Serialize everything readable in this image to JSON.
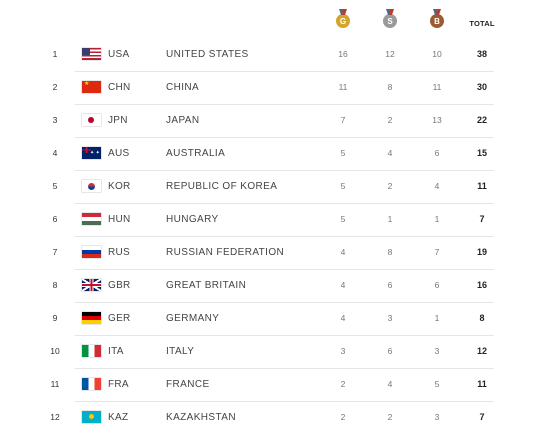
{
  "header": {
    "gold_icon": "gold-medal-icon",
    "gold_letter": "G",
    "silver_icon": "silver-medal-icon",
    "silver_letter": "S",
    "bronze_icon": "bronze-medal-icon",
    "bronze_letter": "B",
    "total_label": "TOTAL"
  },
  "colors": {
    "gold": "#d4a52a",
    "silver": "#9a9a9a",
    "bronze": "#9c5b32"
  },
  "rows": [
    {
      "rank": "1",
      "flag": "usa-flag-icon",
      "code": "USA",
      "country": "UNITED STATES",
      "gold": "16",
      "silver": "12",
      "bronze": "10",
      "total": "38"
    },
    {
      "rank": "2",
      "flag": "chn-flag-icon",
      "code": "CHN",
      "country": "CHINA",
      "gold": "11",
      "silver": "8",
      "bronze": "11",
      "total": "30"
    },
    {
      "rank": "3",
      "flag": "jpn-flag-icon",
      "code": "JPN",
      "country": "JAPAN",
      "gold": "7",
      "silver": "2",
      "bronze": "13",
      "total": "22"
    },
    {
      "rank": "4",
      "flag": "aus-flag-icon",
      "code": "AUS",
      "country": "AUSTRALIA",
      "gold": "5",
      "silver": "4",
      "bronze": "6",
      "total": "15"
    },
    {
      "rank": "5",
      "flag": "kor-flag-icon",
      "code": "KOR",
      "country": "REPUBLIC OF KOREA",
      "gold": "5",
      "silver": "2",
      "bronze": "4",
      "total": "11"
    },
    {
      "rank": "6",
      "flag": "hun-flag-icon",
      "code": "HUN",
      "country": "HUNGARY",
      "gold": "5",
      "silver": "1",
      "bronze": "1",
      "total": "7"
    },
    {
      "rank": "7",
      "flag": "rus-flag-icon",
      "code": "RUS",
      "country": "RUSSIAN FEDERATION",
      "gold": "4",
      "silver": "8",
      "bronze": "7",
      "total": "19"
    },
    {
      "rank": "8",
      "flag": "gbr-flag-icon",
      "code": "GBR",
      "country": "GREAT BRITAIN",
      "gold": "4",
      "silver": "6",
      "bronze": "6",
      "total": "16"
    },
    {
      "rank": "9",
      "flag": "ger-flag-icon",
      "code": "GER",
      "country": "GERMANY",
      "gold": "4",
      "silver": "3",
      "bronze": "1",
      "total": "8"
    },
    {
      "rank": "10",
      "flag": "ita-flag-icon",
      "code": "ITA",
      "country": "ITALY",
      "gold": "3",
      "silver": "6",
      "bronze": "3",
      "total": "12"
    },
    {
      "rank": "11",
      "flag": "fra-flag-icon",
      "code": "FRA",
      "country": "FRANCE",
      "gold": "2",
      "silver": "4",
      "bronze": "5",
      "total": "11"
    },
    {
      "rank": "12",
      "flag": "kaz-flag-icon",
      "code": "KAZ",
      "country": "KAZAKHSTAN",
      "gold": "2",
      "silver": "2",
      "bronze": "3",
      "total": "7"
    }
  ]
}
